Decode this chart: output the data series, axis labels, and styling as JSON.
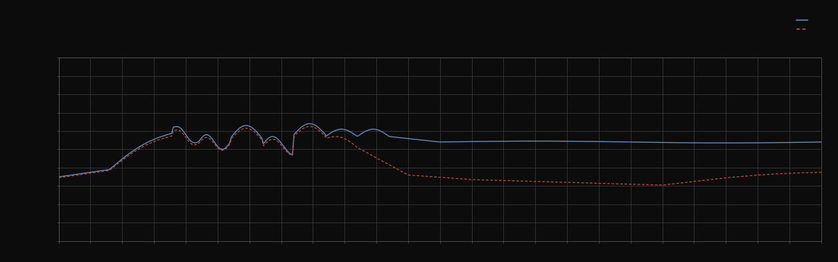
{
  "background_color": "#0c0c0c",
  "plot_bg_color": "#0c0c0c",
  "grid_color": "#404040",
  "blue_line_color": "#5b8ec4",
  "red_line_color": "#c94c2e",
  "legend_text_color": "#b0b0b0",
  "axis_color": "#606060",
  "figsize": [
    12.09,
    3.78
  ],
  "dpi": 100,
  "legend_label1": "  ",
  "legend_label2": "  "
}
